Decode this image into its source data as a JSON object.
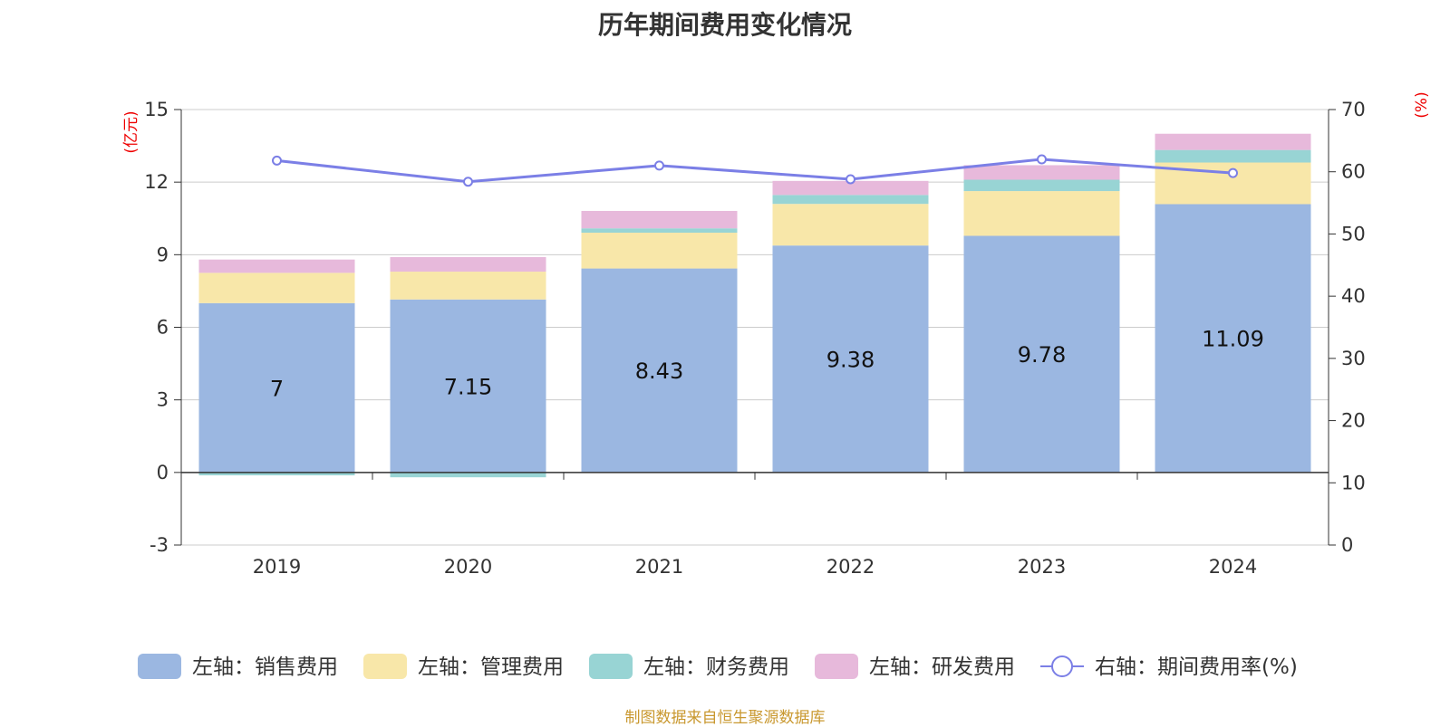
{
  "chart_data": {
    "type": "bar",
    "title": "历年期间费用变化情况",
    "categories": [
      "2019",
      "2020",
      "2021",
      "2022",
      "2023",
      "2024"
    ],
    "series": [
      {
        "name": "左轴：销售费用",
        "kind": "bar",
        "axis": "left",
        "color": "#9bb7e1",
        "values": [
          7,
          7.15,
          8.43,
          9.38,
          9.78,
          11.09
        ]
      },
      {
        "name": "左轴：管理费用",
        "kind": "bar",
        "axis": "left",
        "color": "#f8e7a9",
        "values": [
          1.25,
          1.15,
          1.48,
          1.72,
          1.85,
          1.72
        ]
      },
      {
        "name": "左轴：财务费用",
        "kind": "bar",
        "axis": "left",
        "color": "#98d4d4",
        "values": [
          -0.12,
          -0.2,
          0.18,
          0.37,
          0.47,
          0.52
        ]
      },
      {
        "name": "左轴：研发费用",
        "kind": "bar",
        "axis": "left",
        "color": "#e7b9db",
        "values": [
          0.55,
          0.6,
          0.72,
          0.58,
          0.6,
          0.67
        ]
      },
      {
        "name": "右轴：期间费用率(%)",
        "kind": "line",
        "axis": "right",
        "color": "#7b7fe6",
        "values": [
          61.8,
          58.4,
          61.0,
          58.8,
          62.0,
          59.8
        ]
      }
    ],
    "data_labels": [
      "7",
      "7.15",
      "8.43",
      "9.38",
      "9.78",
      "11.09"
    ],
    "y_left": {
      "unit": "(亿元)",
      "ticks": [
        "15",
        "12",
        "9",
        "6",
        "3",
        "0",
        "-3"
      ],
      "lim": [
        -3,
        15
      ]
    },
    "y_right": {
      "unit": "(%)",
      "ticks": [
        "70",
        "60",
        "50",
        "40",
        "30",
        "20",
        "10",
        "0"
      ],
      "lim": [
        0,
        70
      ]
    },
    "grid": true,
    "legend_position": "bottom"
  },
  "source_note": "制图数据来自恒生聚源数据库"
}
